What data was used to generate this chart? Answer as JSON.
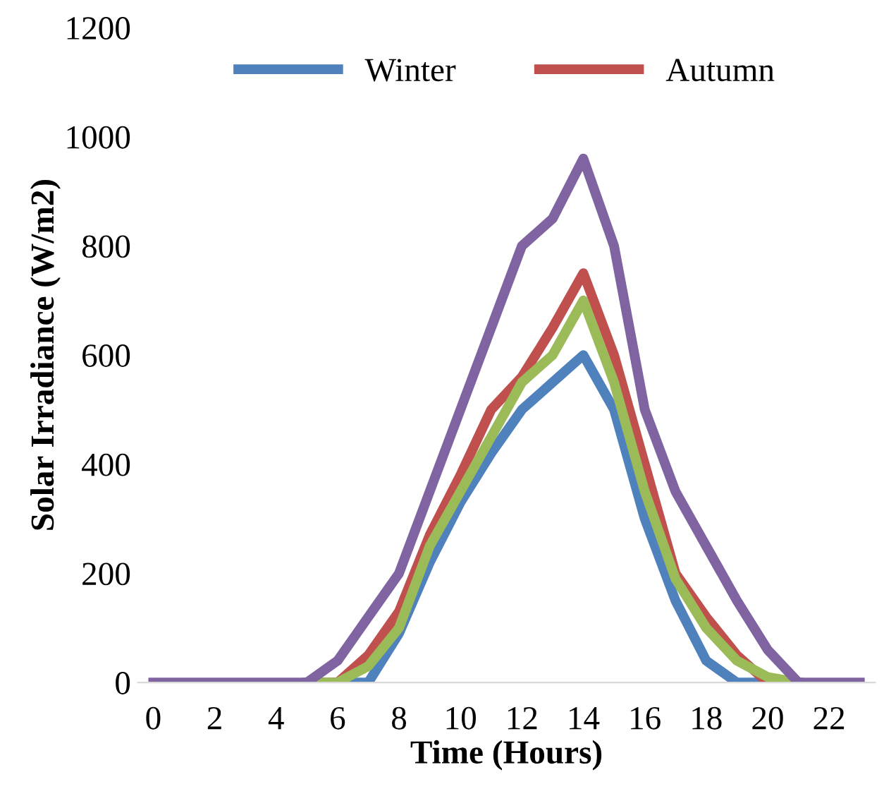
{
  "chart_data": {
    "type": "line",
    "xlabel": "Time (Hours)",
    "ylabel": "Solar Irradiance (W/m2)",
    "x": [
      0,
      1,
      2,
      3,
      4,
      5,
      6,
      7,
      8,
      9,
      10,
      11,
      12,
      13,
      14,
      15,
      16,
      17,
      18,
      19,
      20,
      21,
      22,
      23
    ],
    "xlim": [
      -0.5,
      23.5
    ],
    "xticks": [
      0,
      2,
      4,
      6,
      8,
      10,
      12,
      14,
      16,
      18,
      20,
      22
    ],
    "ylim": [
      0,
      1200
    ],
    "yticks": [
      0,
      200,
      400,
      600,
      800,
      1000,
      1200
    ],
    "grid": false,
    "legend": "top",
    "marker": "none",
    "line_style": "solid",
    "series": [
      {
        "name": "Winter",
        "color": "#4f81bd",
        "values": [
          null,
          null,
          null,
          null,
          null,
          0,
          0,
          0,
          90,
          220,
          330,
          420,
          500,
          550,
          600,
          500,
          300,
          150,
          40,
          0,
          0,
          0,
          null,
          null
        ]
      },
      {
        "name": "Autumn",
        "color": "#c0504d",
        "values": [
          null,
          null,
          null,
          null,
          null,
          0,
          0,
          50,
          130,
          270,
          380,
          500,
          560,
          650,
          750,
          600,
          400,
          200,
          120,
          50,
          0,
          0,
          null,
          null
        ]
      },
      {
        "color": "#9bbb59",
        "values": [
          null,
          null,
          null,
          null,
          null,
          0,
          0,
          30,
          100,
          250,
          350,
          450,
          550,
          600,
          700,
          550,
          350,
          190,
          100,
          40,
          10,
          0,
          null,
          null
        ]
      },
      {
        "color": "#8064a2",
        "values": [
          0,
          0,
          0,
          0,
          0,
          0,
          40,
          120,
          200,
          350,
          500,
          650,
          800,
          850,
          960,
          800,
          500,
          350,
          250,
          150,
          60,
          0,
          0,
          0
        ]
      }
    ]
  }
}
